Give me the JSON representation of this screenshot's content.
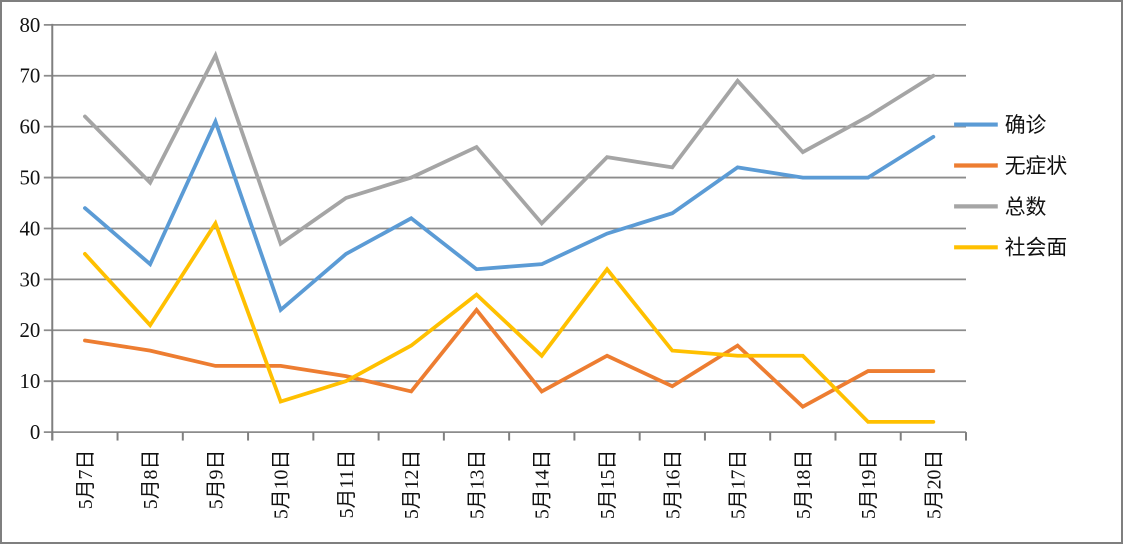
{
  "chart_data": {
    "type": "line",
    "categories": [
      "5月7日",
      "5月8日",
      "5月9日",
      "5月10日",
      "5月11日",
      "5月12日",
      "5月13日",
      "5月14日",
      "5月15日",
      "5月16日",
      "5月17日",
      "5月18日",
      "5月19日",
      "5月20日"
    ],
    "series": [
      {
        "name": "确诊",
        "color": "#5B9BD5",
        "values": [
          44,
          33,
          61,
          24,
          35,
          42,
          32,
          33,
          39,
          43,
          52,
          50,
          50,
          58
        ]
      },
      {
        "name": "无症状",
        "color": "#ED7D31",
        "values": [
          18,
          16,
          13,
          13,
          11,
          8,
          24,
          8,
          15,
          9,
          17,
          5,
          12,
          12
        ]
      },
      {
        "name": "总数",
        "color": "#A5A5A5",
        "values": [
          62,
          49,
          74,
          37,
          46,
          50,
          56,
          41,
          54,
          52,
          69,
          55,
          62,
          70
        ]
      },
      {
        "name": "社会面",
        "color": "#FFC000",
        "values": [
          35,
          21,
          41,
          6,
          10,
          17,
          27,
          15,
          32,
          16,
          15,
          15,
          2,
          2
        ]
      }
    ],
    "ylim": [
      0,
      80
    ],
    "yticks": [
      0,
      10,
      20,
      30,
      40,
      50,
      60,
      70,
      80
    ],
    "grid": true,
    "legend_position": "right",
    "axis_color": "#7f7f7f",
    "gridline_color": "#8c8c8c",
    "text_color": "#111111",
    "background_color": "#ffffff"
  }
}
